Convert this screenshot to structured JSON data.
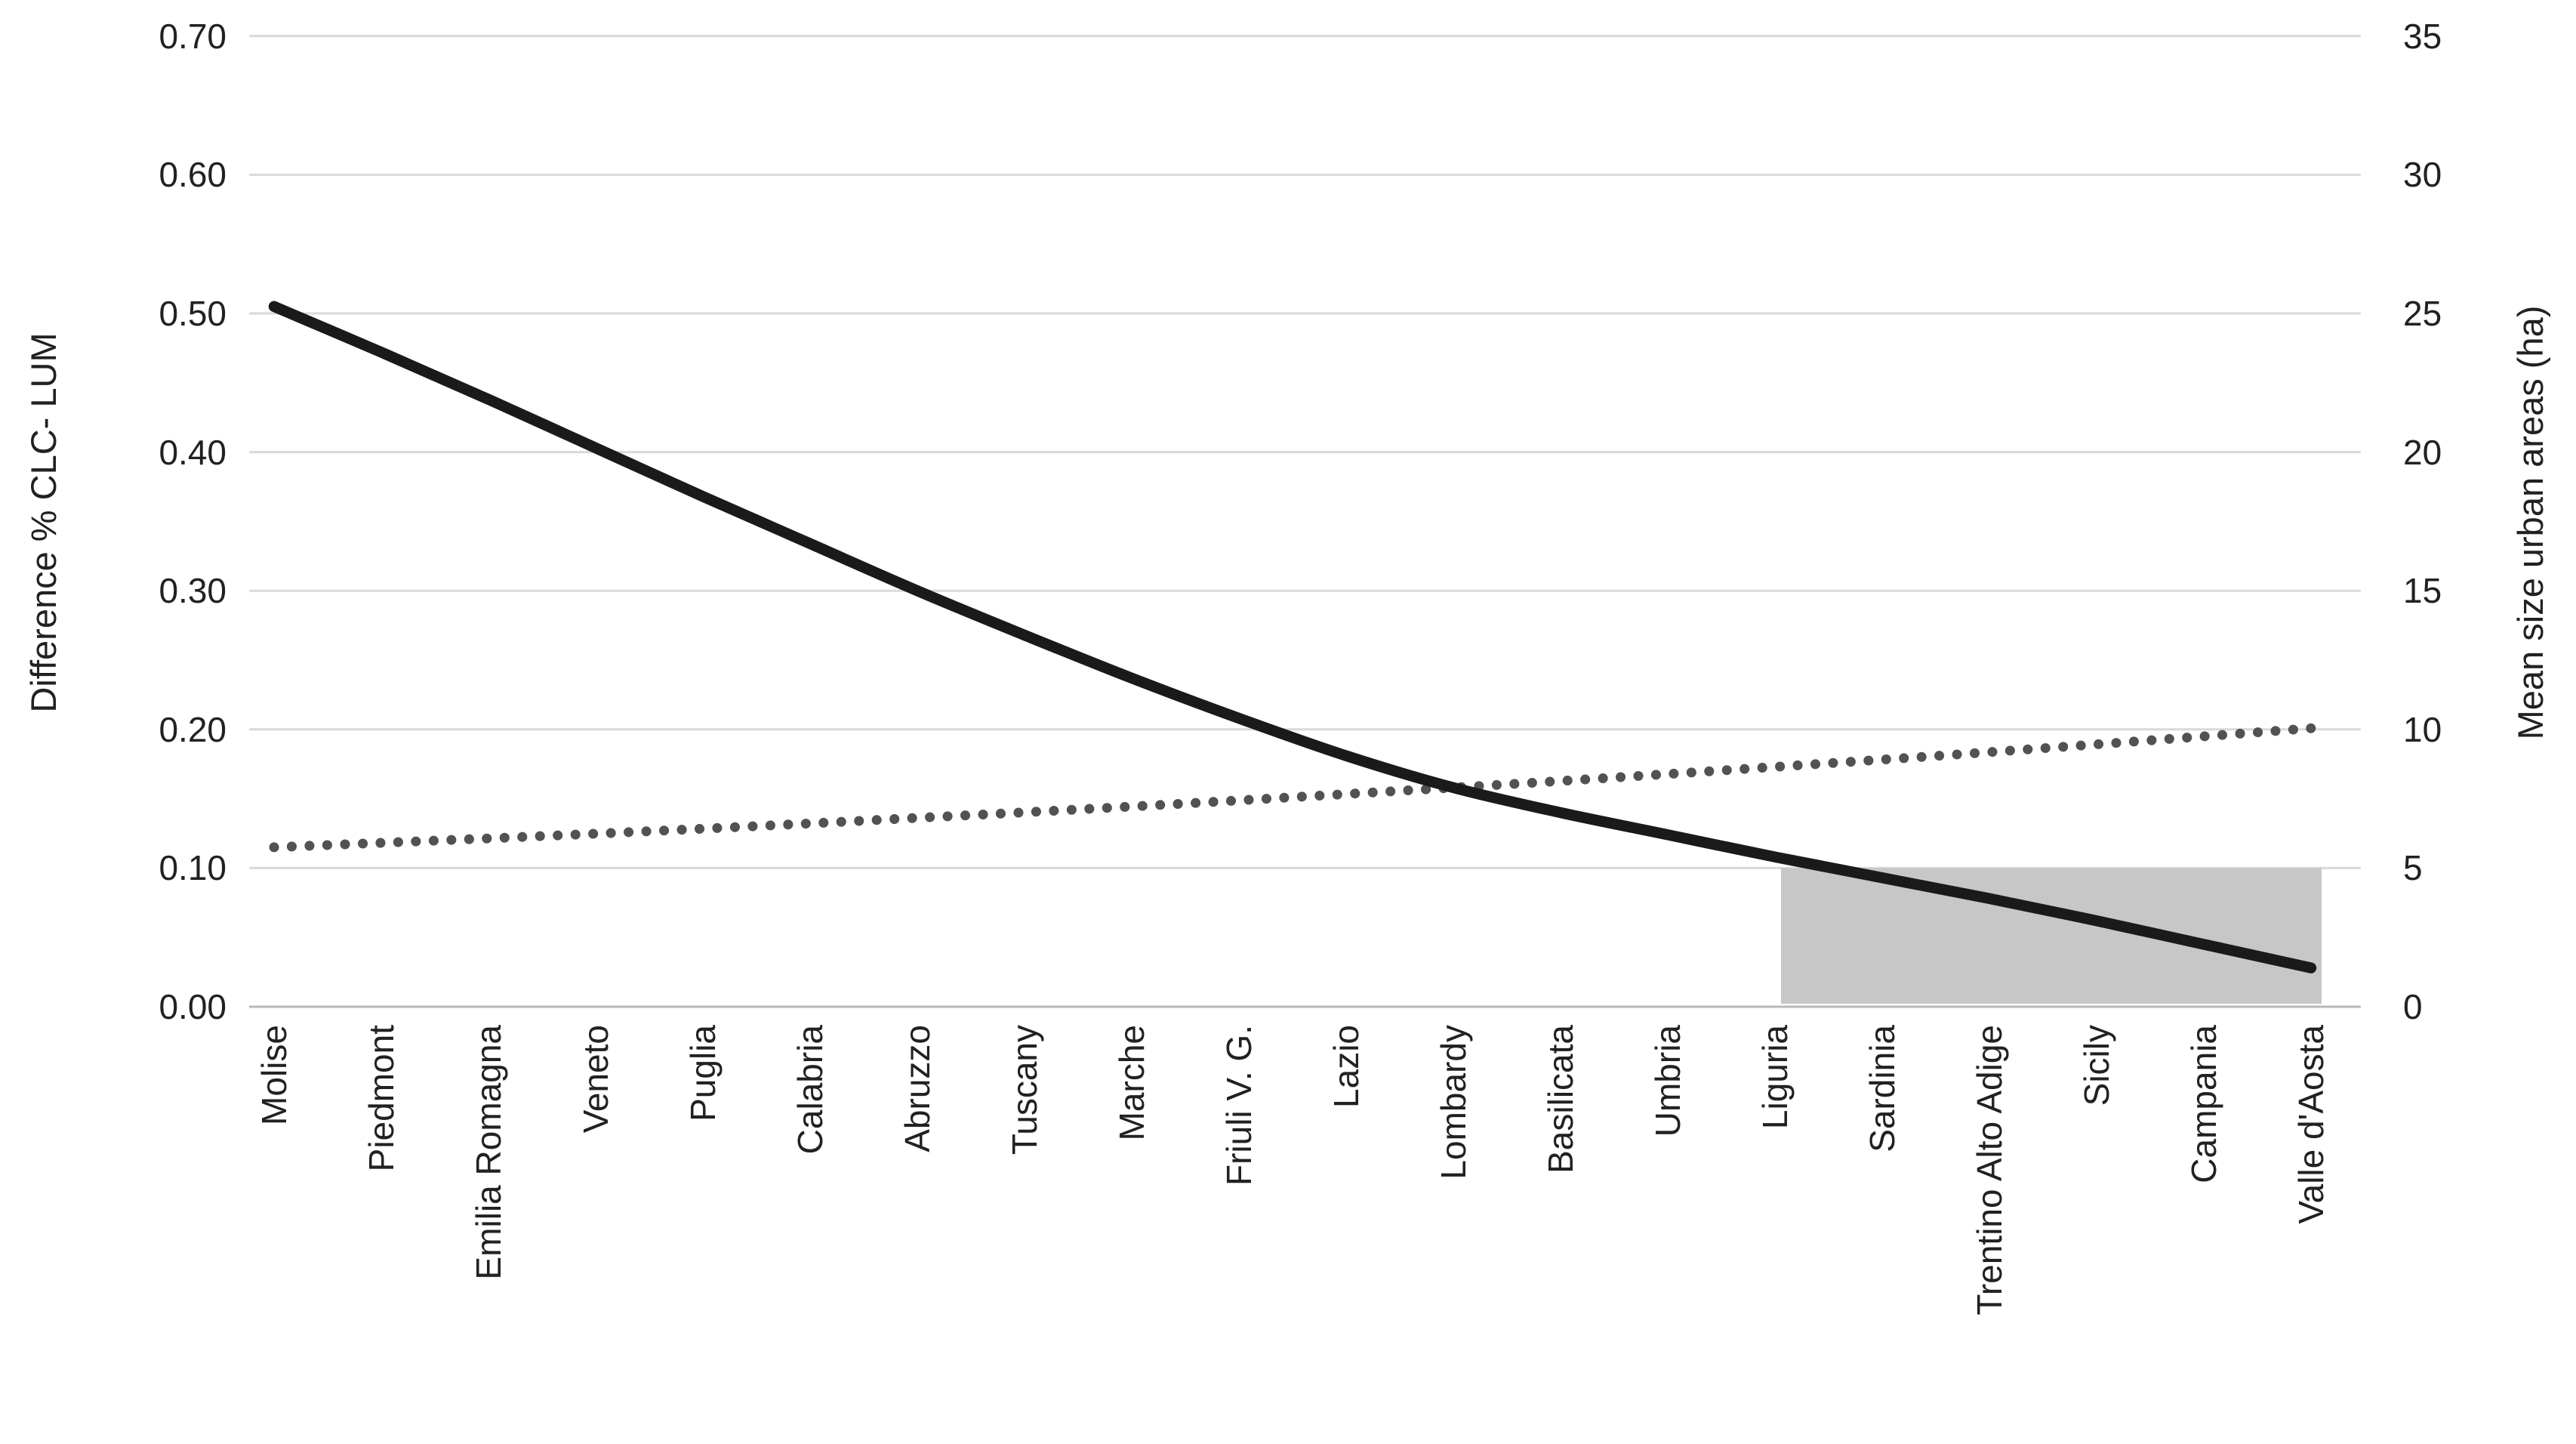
{
  "chart_data": {
    "type": "line",
    "title": "",
    "legend": "none",
    "grid": true,
    "categories": [
      "Molise",
      "Piedmont",
      "Emilia Romagna",
      "Veneto",
      "Puglia",
      "Calabria",
      "Abruzzo",
      "Tuscany",
      "Marche",
      "Friuli V. G.",
      "Lazio",
      "Lombardy",
      "Basilicata",
      "Umbria",
      "Liguria",
      "Sardinia",
      "Trentino Alto Adige",
      "Sicily",
      "Campania",
      "Valle d'Aosta"
    ],
    "series": [
      {
        "name": "Difference % CLC-LUM",
        "axis": "left",
        "style": "solid",
        "color": "#1a1a1a",
        "values": [
          0.505,
          0.472,
          0.438,
          0.403,
          0.368,
          0.334,
          0.3,
          0.268,
          0.237,
          0.208,
          0.181,
          0.158,
          0.14,
          0.124,
          0.108,
          0.093,
          0.078,
          0.062,
          0.045,
          0.028
        ]
      },
      {
        "name": "Mean size urban areas (ha)",
        "axis": "right",
        "style": "round-dotted",
        "color": "#525252",
        "values": [
          5.75,
          5.91,
          6.07,
          6.24,
          6.42,
          6.61,
          6.81,
          7.01,
          7.22,
          7.44,
          7.67,
          7.9,
          8.14,
          8.39,
          8.65,
          8.91,
          9.18,
          9.46,
          9.75,
          10.04
        ]
      }
    ],
    "left_axis": {
      "title": "Difference % CLC- LUM",
      "min": 0.0,
      "max": 0.7,
      "ticks": [
        "0.70",
        "0.60",
        "0.50",
        "0.40",
        "0.30",
        "0.20",
        "0.10",
        "0.00"
      ]
    },
    "right_axis": {
      "title": "Mean size urban areas (ha)",
      "min": 0,
      "max": 35,
      "ticks": [
        "35",
        "30",
        "25",
        "20",
        "15",
        "10",
        "5",
        "0"
      ]
    },
    "highlight": {
      "from_category": "Liguria",
      "from_index": 14,
      "to_category": "Valle d'Aosta",
      "to_index": 19,
      "top_value_right_axis": 5,
      "top_value_left_axis": 0.1,
      "color": "#c7c7c7"
    },
    "colors": {
      "gridline": "#d9d9d9",
      "axis_line": "#b8b8b8",
      "background": "#ffffff"
    }
  }
}
